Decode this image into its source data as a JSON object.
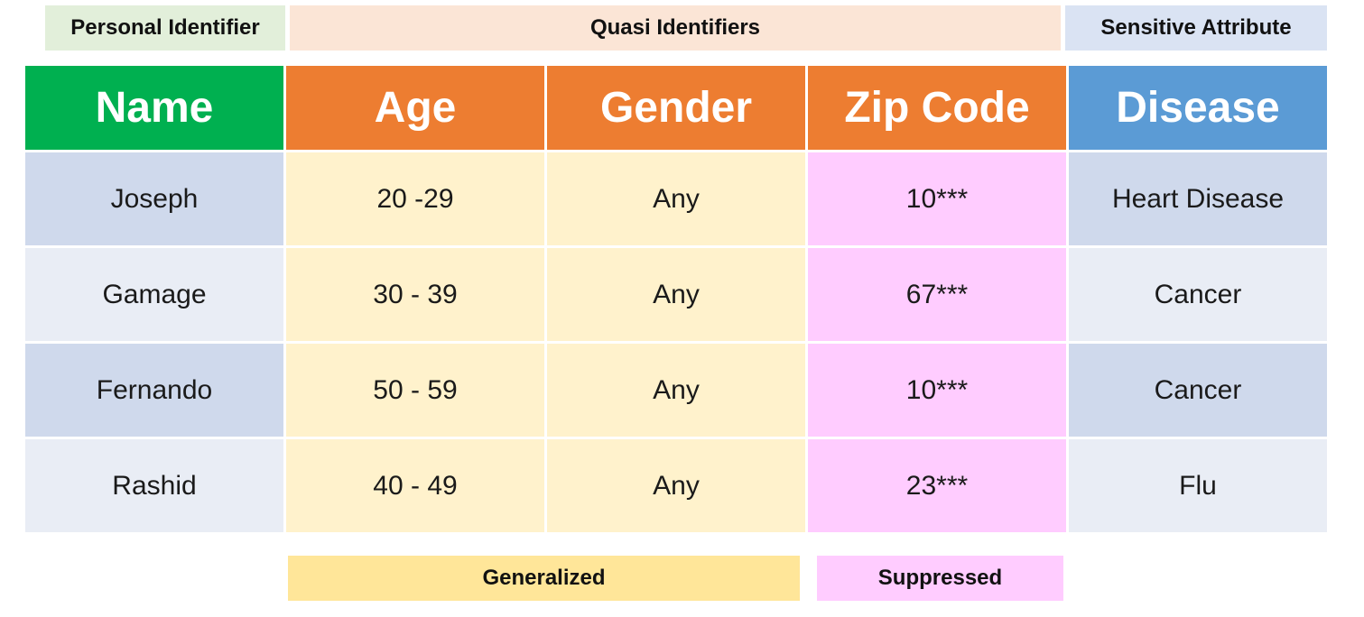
{
  "categories": {
    "personal": "Personal Identifier",
    "quasi": "Quasi Identifiers",
    "sensitive": "Sensitive Attribute"
  },
  "table": {
    "headers": [
      "Name",
      "Age",
      "Gender",
      "Zip Code",
      "Disease"
    ],
    "rows": [
      {
        "name": "Joseph",
        "age": "20 -29",
        "gender": "Any",
        "zip": "10***",
        "disease": "Heart Disease"
      },
      {
        "name": "Gamage",
        "age": "30 - 39",
        "gender": "Any",
        "zip": "67***",
        "disease": "Cancer"
      },
      {
        "name": "Fernando",
        "age": "50 - 59",
        "gender": "Any",
        "zip": "10***",
        "disease": "Cancer"
      },
      {
        "name": "Rashid",
        "age": "40 - 49",
        "gender": "Any",
        "zip": "23***",
        "disease": "Flu"
      }
    ]
  },
  "legend": {
    "generalized": "Generalized",
    "suppressed": "Suppressed"
  },
  "colors": {
    "personal_header": "#00b050",
    "quasi_header": "#ed7d31",
    "sensitive_header": "#5b9bd5",
    "generalized_fill": "#fff2cc",
    "suppressed_fill": "#ffccff"
  }
}
